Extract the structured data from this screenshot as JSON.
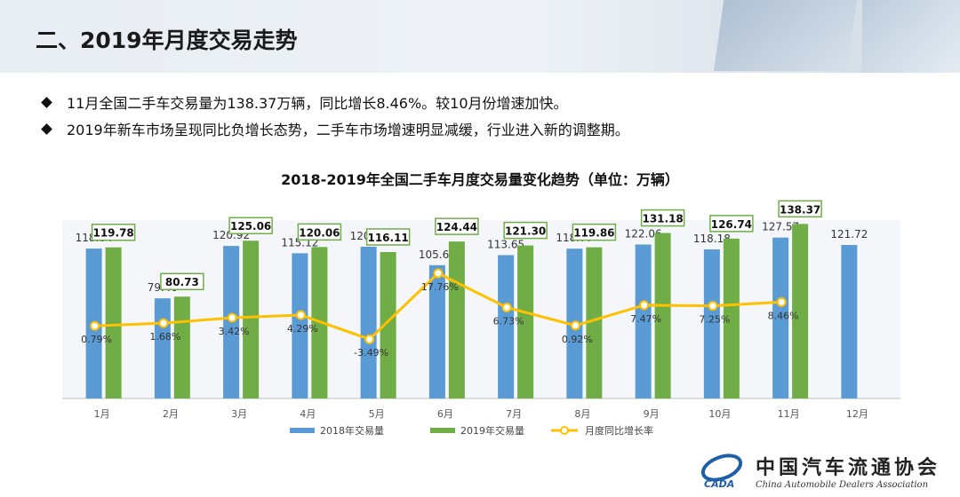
{
  "slide": {
    "title": "二、2019年月度交易走势",
    "bullets": [
      "11月全国二手车交易量为138.37万辆，同比增长8.46%。较10月份增速加快。",
      "2019年新车市场呈现同比负增长态势，二手车市场增速明显减缓，行业进入新的调整期。"
    ]
  },
  "logo": {
    "cn": "中国汽车流通协会",
    "en": "China Automobile Dealers Association",
    "mark": "CADA"
  },
  "colors": {
    "bar2018": "#5b9bd5",
    "bar2019": "#70ad47",
    "line": "#ffc000",
    "labelBorder2019": "#70ad47"
  },
  "chart_data": {
    "type": "bar",
    "title": "2018-2019年全国二手车月度交易量变化趋势（单位：万辆）",
    "categories": [
      "1月",
      "2月",
      "3月",
      "4月",
      "5月",
      "6月",
      "7月",
      "8月",
      "9月",
      "10月",
      "11月",
      "12月"
    ],
    "series": [
      {
        "name": "2018年交易量",
        "type": "bar",
        "values": [
          118.84,
          79.4,
          120.92,
          115.12,
          120.3,
          105.67,
          113.65,
          118.77,
          122.06,
          118.18,
          127.57,
          121.72
        ],
        "labels": [
          "118.84",
          "79.40",
          "120.92",
          "115.12",
          "120.30",
          "105.67",
          "113.65",
          "118.77",
          "122.06",
          "118.18",
          "127.57",
          "121.72"
        ]
      },
      {
        "name": "2019年交易量",
        "type": "bar",
        "values": [
          119.78,
          80.73,
          125.06,
          120.06,
          116.11,
          124.44,
          121.3,
          119.86,
          131.18,
          126.74,
          138.37,
          null
        ],
        "labels": [
          "119.78",
          "80.73",
          "125.06",
          "120.06",
          "116.11",
          "124.44",
          "121.30",
          "119.86",
          "131.18",
          "126.74",
          "138.37",
          null
        ]
      },
      {
        "name": "月度同比增长率",
        "type": "line",
        "values": [
          0.79,
          1.68,
          3.42,
          4.29,
          -3.49,
          17.76,
          6.73,
          0.92,
          7.47,
          7.25,
          8.46,
          null
        ],
        "labels": [
          "0.79%",
          "1.68%",
          "3.42%",
          "4.29%",
          "-3.49%",
          "17.76%",
          "6.73%",
          "0.92%",
          "7.47%",
          "7.25%",
          "8.46%",
          null
        ]
      }
    ],
    "ylim": [
      0,
      140
    ],
    "ylim_secondary": [
      -20,
      30
    ],
    "legend": "bottom",
    "grid": false
  }
}
